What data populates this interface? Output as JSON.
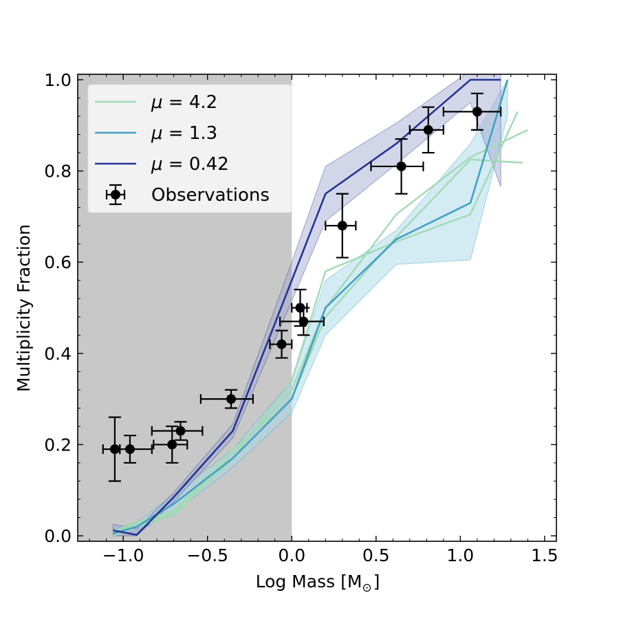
{
  "chart_data": {
    "type": "line",
    "xlabel": "Log Mass [M",
    "xlabel_sub": "⊙",
    "xlabel_close": "]",
    "ylabel": "Multiplicity Fraction",
    "xlim": [
      -1.27,
      1.57
    ],
    "ylim": [
      -0.012,
      1.012
    ],
    "x_ticks": [
      -1.0,
      -0.5,
      0.0,
      0.5,
      1.0,
      1.5
    ],
    "x_tick_labels": [
      "−1.0",
      "−0.5",
      "0.0",
      "0.5",
      "1.0",
      "1.5"
    ],
    "y_ticks": [
      0.0,
      0.2,
      0.4,
      0.6,
      0.8,
      1.0
    ],
    "y_tick_labels": [
      "0.0",
      "0.2",
      "0.4",
      "0.6",
      "0.8",
      "1.0"
    ],
    "shaded_region": {
      "x": [
        -1.27,
        0.0
      ],
      "color": "#c8c8c8"
    },
    "legend_position": "top-left",
    "series": [
      {
        "name": "μ = 4.2",
        "symbol": "μ",
        "eq": " = 4.2",
        "color": "#a1dab4",
        "lines": [
          {
            "x": [
              -1.06,
              -0.92,
              -0.7,
              -0.35,
              0.0,
              0.2,
              0.62,
              1.06,
              1.34
            ],
            "y": [
              0.0,
              0.02,
              0.045,
              0.17,
              0.34,
              0.58,
              0.645,
              0.705,
              0.93
            ]
          },
          {
            "x": [
              -1.06,
              -0.92,
              -0.7,
              -0.35,
              0.0,
              0.2,
              0.62,
              1.06,
              1.4
            ],
            "y": [
              0.005,
              0.025,
              0.05,
              0.18,
              0.32,
              0.5,
              0.705,
              0.83,
              0.89
            ]
          },
          {
            "x": [
              -1.06,
              -0.92,
              -0.7,
              -0.35,
              0.0,
              0.2,
              0.62,
              1.06,
              1.37
            ],
            "y": [
              0.01,
              0.03,
              0.055,
              0.19,
              0.3,
              0.48,
              0.655,
              0.825,
              0.818
            ]
          }
        ]
      },
      {
        "name": "μ = 1.3",
        "symbol": "μ",
        "eq": " = 1.3",
        "color": "#41a0c4",
        "band_color": "#a8d8e8",
        "line": {
          "x": [
            -1.06,
            -0.92,
            -0.7,
            -0.35,
            0.0,
            0.2,
            0.62,
            1.06,
            1.28
          ],
          "y": [
            0.005,
            0.02,
            0.07,
            0.17,
            0.3,
            0.5,
            0.65,
            0.73,
            1.0
          ]
        },
        "band_upper": [
          0.015,
          0.03,
          0.09,
          0.19,
          0.34,
          0.56,
          0.67,
          0.86,
          1.0
        ],
        "band_lower": [
          0.0,
          0.01,
          0.05,
          0.15,
          0.27,
          0.44,
          0.595,
          0.605,
          0.92
        ]
      },
      {
        "name": "μ = 0.42",
        "symbol": "μ",
        "eq": " = 0.42",
        "color": "#253494",
        "band_color": "#9ca3cc",
        "line": {
          "x": [
            -1.06,
            -0.92,
            -0.7,
            -0.35,
            0.0,
            0.2,
            0.62,
            1.06,
            1.24
          ],
          "y": [
            0.012,
            0.002,
            0.085,
            0.23,
            0.56,
            0.75,
            0.86,
            1.0,
            1.0
          ]
        },
        "band_upper": [
          0.025,
          0.015,
          0.095,
          0.245,
          0.6,
          0.81,
          0.905,
          1.02,
          1.02
        ],
        "band_lower": [
          0.0,
          0.0,
          0.075,
          0.215,
          0.515,
          0.69,
          0.815,
          0.95,
          0.765
        ]
      }
    ],
    "observations": {
      "name": "Observations",
      "color": "#000000",
      "points": [
        {
          "x": -1.05,
          "y": 0.19,
          "xerr_lo": 0.07,
          "xerr_hi": 0.03,
          "yerr_lo": 0.07,
          "yerr_hi": 0.07
        },
        {
          "x": -0.96,
          "y": 0.19,
          "xerr_lo": 0.06,
          "xerr_hi": 0.13,
          "yerr_lo": 0.03,
          "yerr_hi": 0.03
        },
        {
          "x": -0.71,
          "y": 0.2,
          "xerr_lo": 0.11,
          "xerr_hi": 0.09,
          "yerr_lo": 0.04,
          "yerr_hi": 0.04
        },
        {
          "x": -0.66,
          "y": 0.23,
          "xerr_lo": 0.17,
          "xerr_hi": 0.13,
          "yerr_lo": 0.02,
          "yerr_hi": 0.02
        },
        {
          "x": -0.36,
          "y": 0.3,
          "xerr_lo": 0.18,
          "xerr_hi": 0.13,
          "yerr_lo": 0.02,
          "yerr_hi": 0.02
        },
        {
          "x": -0.06,
          "y": 0.42,
          "xerr_lo": 0.07,
          "xerr_hi": 0.06,
          "yerr_lo": 0.03,
          "yerr_hi": 0.03
        },
        {
          "x": 0.05,
          "y": 0.5,
          "xerr_lo": 0.05,
          "xerr_hi": 0.04,
          "yerr_lo": 0.04,
          "yerr_hi": 0.04
        },
        {
          "x": 0.07,
          "y": 0.47,
          "xerr_lo": 0.14,
          "xerr_hi": 0.12,
          "yerr_lo": 0.03,
          "yerr_hi": 0.03
        },
        {
          "x": 0.3,
          "y": 0.68,
          "xerr_lo": 0.1,
          "xerr_hi": 0.08,
          "yerr_lo": 0.07,
          "yerr_hi": 0.07
        },
        {
          "x": 0.65,
          "y": 0.81,
          "xerr_lo": 0.18,
          "xerr_hi": 0.13,
          "yerr_lo": 0.06,
          "yerr_hi": 0.06
        },
        {
          "x": 0.81,
          "y": 0.89,
          "xerr_lo": 0.11,
          "xerr_hi": 0.09,
          "yerr_lo": 0.05,
          "yerr_hi": 0.05
        },
        {
          "x": 1.1,
          "y": 0.93,
          "xerr_lo": 0.2,
          "xerr_hi": 0.14,
          "yerr_lo": 0.04,
          "yerr_hi": 0.04
        }
      ]
    }
  }
}
